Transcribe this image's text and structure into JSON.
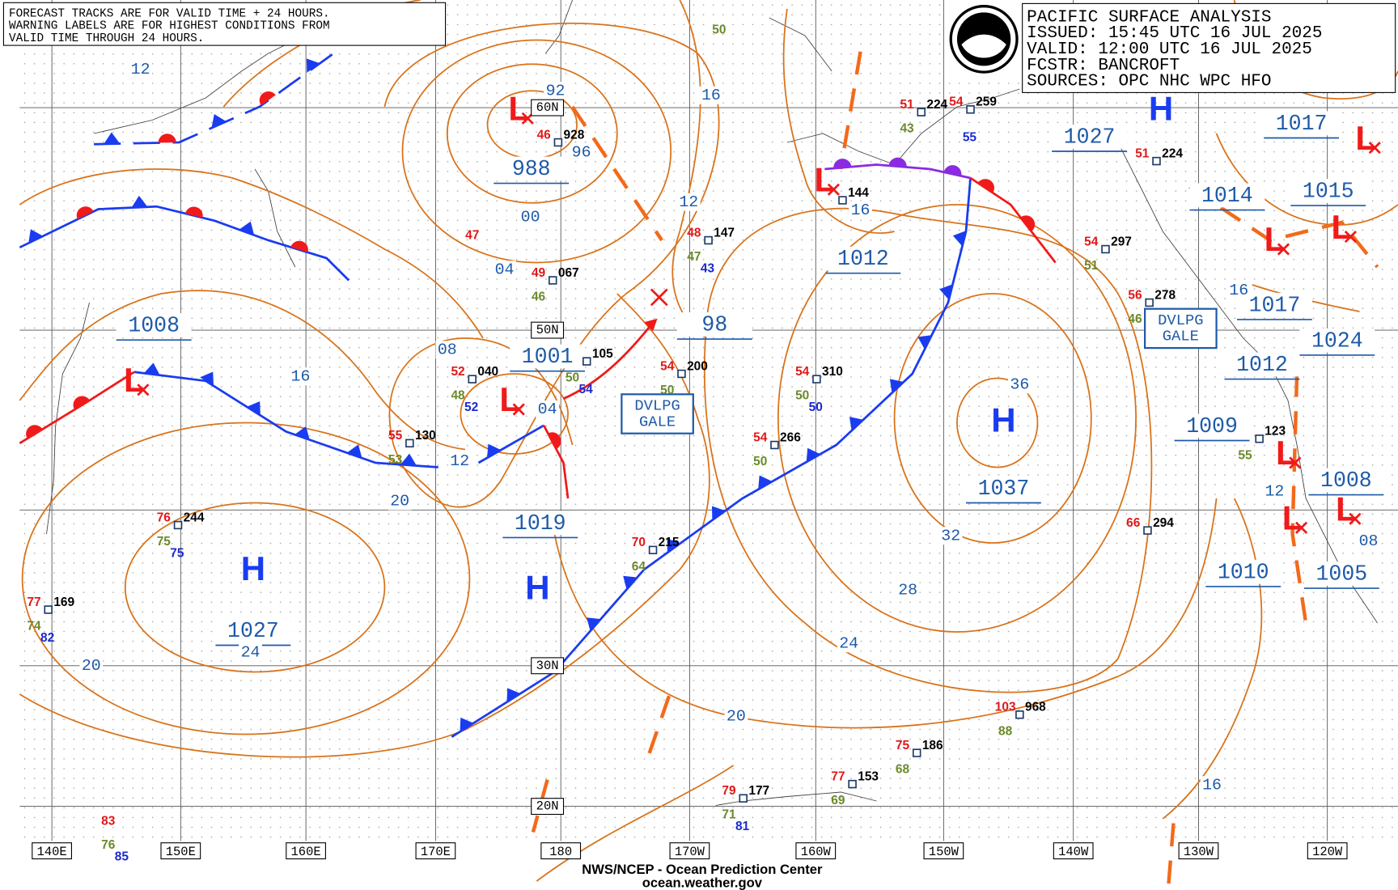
{
  "header": {
    "warning": [
      "FORECAST TRACKS ARE FOR VALID TIME + 24 HOURS.",
      "WARNING LABELS ARE FOR HIGHEST CONDITIONS FROM",
      "VALID TIME THROUGH 24 HOURS."
    ],
    "title": [
      "PACIFIC SURFACE ANALYSIS",
      "ISSUED: 15:45 UTC 16 JUL 2025",
      "VALID:  12:00 UTC 16 JUL 2025",
      "FCSTR:  BANCROFT",
      "SOURCES:  OPC NHC WPC HFO"
    ]
  },
  "pressure_labels": [
    "988",
    "1001",
    "1008",
    "1019",
    "1027",
    "1012",
    "1037",
    "1027",
    "1017",
    "1014",
    "1015",
    "1017",
    "1024",
    "1012",
    "1009",
    "1008",
    "1010",
    "1005",
    "98"
  ],
  "isobar_labels": [
    "92",
    "96",
    "00",
    "04",
    "08",
    "04",
    "12",
    "16",
    "20",
    "24",
    "20",
    "12",
    "16",
    "12",
    "16",
    "36",
    "32",
    "28",
    "24",
    "20",
    "16",
    "16",
    "12",
    "08"
  ],
  "highs": [
    "H",
    "H",
    "H",
    "H"
  ],
  "lows": [
    "L",
    "L",
    "L",
    "L",
    "L",
    "L",
    "L",
    "L",
    "L",
    "L"
  ],
  "warnings": [
    [
      "DVLPG",
      "GALE"
    ],
    [
      "DVLPG",
      "GALE"
    ]
  ],
  "longitudes": [
    "140E",
    "150E",
    "160E",
    "170E",
    "180",
    "170W",
    "160W",
    "150W",
    "140W",
    "130W",
    "120W"
  ],
  "latitudes": [
    "60N",
    "50N",
    "30N",
    "20N"
  ],
  "stations": [
    {
      "pressure": "928",
      "temp": "46"
    },
    {
      "pressure": "067",
      "temp": "49",
      "dew": "46"
    },
    {
      "pressure": "040",
      "temp": "52",
      "dew": "48",
      "other": "52"
    },
    {
      "pressure": "105",
      "dew": "50",
      "other": "54"
    },
    {
      "pressure": "200",
      "temp": "54",
      "dew": "50"
    },
    {
      "pressure": "310",
      "temp": "54",
      "dew": "50",
      "other": "50"
    },
    {
      "pressure": "266",
      "temp": "54",
      "dew": "50"
    },
    {
      "pressure": "130",
      "temp": "55",
      "dew": "53"
    },
    {
      "pressure": "244",
      "temp": "76",
      "dew": "75",
      "other": "75"
    },
    {
      "pressure": "169",
      "temp": "77",
      "dew": "74",
      "other": "82"
    },
    {
      "pressure": "215",
      "temp": "70",
      "dew": "64"
    },
    {
      "pressure": "177",
      "temp": "79",
      "dew": "71",
      "other": "81"
    },
    {
      "pressure": "153",
      "temp": "77",
      "dew": "69"
    },
    {
      "pressure": "186",
      "temp": "75",
      "dew": "68"
    },
    {
      "pressure": "968",
      "temp": "103",
      "dew": "88"
    },
    {
      "pressure": "294",
      "temp": "66"
    },
    {
      "pressure": "278",
      "temp": "56",
      "dew": "46"
    },
    {
      "pressure": "297",
      "temp": "54",
      "dew": "51"
    },
    {
      "pressure": "147",
      "temp": "48",
      "dew": "47",
      "other": "43"
    },
    {
      "pressure": "144"
    },
    {
      "pressure": "224",
      "temp": "51",
      "dew": "43"
    },
    {
      "pressure": "259",
      "temp": "54",
      "other": "55"
    },
    {
      "pressure": "224",
      "temp": "51"
    },
    {
      "pressure": "123",
      "dew": "55"
    },
    {
      "temp": "47"
    },
    {
      "temp": "83",
      "dew": "76",
      "other": "85"
    },
    {
      "dew": "50"
    }
  ],
  "footer": [
    "NWS/NCEP - Ocean Prediction Center",
    "ocean.weather.gov"
  ]
}
